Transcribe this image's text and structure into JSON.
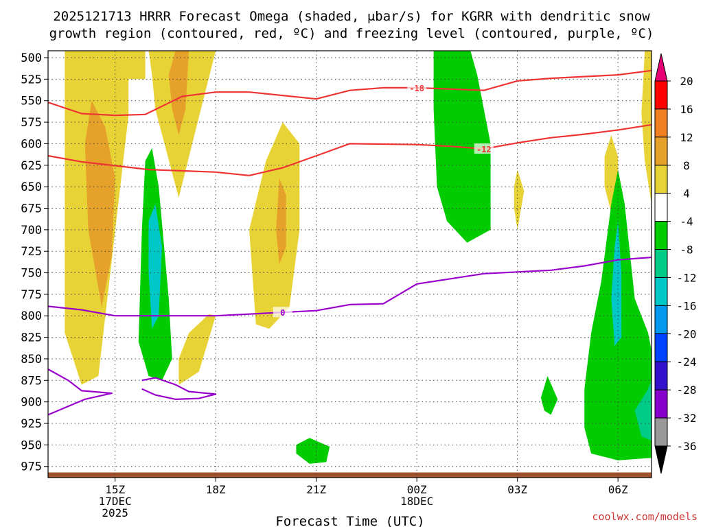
{
  "chart_data": {
    "type": "heatmap",
    "title_line1": "2025121713 HRRR Forecast Omega (shaded, μbar/s) for KGRR with dendritic snow",
    "title_line2": "growth region (contoured, red, ºC) and freezing level (contoured, purple, ºC)",
    "xlabel": "Forecast Time (UTC)",
    "credit": "coolwx.com/models",
    "xlim": [
      13,
      31
    ],
    "ylim": [
      492,
      988
    ],
    "x_ticks": [
      {
        "x": 15,
        "lines": [
          "15Z",
          "17DEC",
          "2025"
        ]
      },
      {
        "x": 18,
        "lines": [
          "18Z"
        ]
      },
      {
        "x": 21,
        "lines": [
          "21Z"
        ]
      },
      {
        "x": 24,
        "lines": [
          "00Z",
          "18DEC"
        ]
      },
      {
        "x": 27,
        "lines": [
          "03Z"
        ]
      },
      {
        "x": 30,
        "lines": [
          "06Z"
        ]
      }
    ],
    "y_ticks": [
      500,
      525,
      550,
      575,
      600,
      625,
      650,
      675,
      700,
      725,
      750,
      775,
      800,
      825,
      850,
      875,
      900,
      925,
      950,
      975
    ],
    "colorbar": {
      "levels": [
        "20",
        "16",
        "12",
        "8",
        "4",
        "-4",
        "-8",
        "-12",
        "-16",
        "-20",
        "-24",
        "-28",
        "-32",
        "-36"
      ],
      "colors": [
        "#ff0000",
        "#ee7f22",
        "#e5a12a",
        "#e8d337",
        "#ffffff",
        "#00cc00",
        "#00cc88",
        "#00c8c8",
        "#0099ee",
        "#0044ff",
        "#3311cc",
        "#8800cc",
        "#999999"
      ],
      "top_color": "#e60073",
      "bottom_color": "#000000"
    },
    "contours": [
      {
        "color": "#ee3333",
        "value": -18,
        "label": "-18",
        "points": [
          [
            13,
            552
          ],
          [
            14,
            565
          ],
          [
            15,
            567
          ],
          [
            15.9,
            566
          ],
          [
            17,
            545
          ],
          [
            18,
            540
          ],
          [
            19,
            540
          ],
          [
            21,
            548
          ],
          [
            22,
            538
          ],
          [
            23,
            535
          ],
          [
            24,
            535
          ],
          [
            26,
            538
          ],
          [
            27,
            527
          ],
          [
            28,
            524
          ],
          [
            30,
            520
          ],
          [
            31,
            515
          ]
        ]
      },
      {
        "color": "#ee3333",
        "value": -12,
        "label": "-12",
        "points": [
          [
            13,
            614
          ],
          [
            14,
            621
          ],
          [
            16,
            630
          ],
          [
            18,
            633
          ],
          [
            19,
            637
          ],
          [
            20,
            628
          ],
          [
            21,
            614
          ],
          [
            22,
            600
          ],
          [
            24,
            601
          ],
          [
            25,
            603
          ],
          [
            26,
            606
          ],
          [
            27,
            599
          ],
          [
            28,
            593
          ],
          [
            29,
            589
          ],
          [
            30,
            584
          ],
          [
            31,
            578
          ]
        ]
      },
      {
        "color": "#9900cc",
        "value": 0,
        "label": "0",
        "points": [
          [
            13,
            789
          ],
          [
            14,
            793
          ],
          [
            15,
            800
          ],
          [
            16,
            800
          ],
          [
            17,
            800
          ],
          [
            18,
            800
          ],
          [
            20,
            796
          ],
          [
            21,
            794
          ],
          [
            22,
            787
          ],
          [
            23,
            786
          ],
          [
            24,
            763
          ],
          [
            25,
            757
          ],
          [
            26,
            751
          ],
          [
            28,
            747
          ],
          [
            29,
            742
          ],
          [
            30,
            735
          ],
          [
            31,
            732
          ]
        ]
      },
      {
        "color": "#9900cc",
        "value": 0,
        "label": "",
        "points": [
          [
            13,
            862
          ],
          [
            13.6,
            875
          ],
          [
            14,
            887
          ],
          [
            14.9,
            890
          ],
          [
            14.1,
            897
          ],
          [
            13,
            915
          ]
        ]
      },
      {
        "color": "#9900cc",
        "value": 0,
        "label": "",
        "points": [
          [
            15.8,
            875
          ],
          [
            16.2,
            872
          ],
          [
            16.8,
            880
          ],
          [
            17.2,
            888
          ],
          [
            18,
            891
          ],
          [
            17.5,
            896
          ],
          [
            16.8,
            897
          ],
          [
            16.2,
            892
          ],
          [
            15.8,
            885
          ]
        ]
      }
    ],
    "regions": [
      {
        "level": 4,
        "color": "#e8d337",
        "points": [
          [
            13.5,
            492
          ],
          [
            15.4,
            492
          ],
          [
            15.4,
            567
          ],
          [
            14.5,
            870
          ],
          [
            14,
            880
          ],
          [
            13.5,
            820
          ]
        ]
      },
      {
        "level": 4,
        "color": "#e8d337",
        "points": [
          [
            15.2,
            492
          ],
          [
            15.35,
            525
          ],
          [
            15.9,
            525
          ],
          [
            15.9,
            492
          ]
        ]
      },
      {
        "level": 4,
        "color": "#e8d337",
        "points": [
          [
            16,
            492
          ],
          [
            18,
            492
          ],
          [
            17.3,
            600
          ],
          [
            16.9,
            663
          ],
          [
            16.2,
            560
          ],
          [
            16.1,
            520
          ]
        ]
      },
      {
        "level": 4,
        "color": "#e8d337",
        "points": [
          [
            16.9,
            850
          ],
          [
            17.2,
            820
          ],
          [
            17.8,
            798
          ],
          [
            18,
            800
          ],
          [
            17.5,
            865
          ],
          [
            16.9,
            880
          ]
        ]
      },
      {
        "level": 4,
        "color": "#e8d337",
        "points": [
          [
            19.2,
            810
          ],
          [
            19,
            700
          ],
          [
            19.5,
            620
          ],
          [
            20,
            575
          ],
          [
            20.5,
            600
          ],
          [
            20.5,
            700
          ],
          [
            20.2,
            790
          ],
          [
            19.6,
            815
          ]
        ]
      },
      {
        "level": 4,
        "color": "#e8d337",
        "points": [
          [
            30.7,
            565
          ],
          [
            30.8,
            492
          ],
          [
            31,
            492
          ],
          [
            31,
            670
          ],
          [
            30.8,
            620
          ]
        ]
      },
      {
        "level": 4,
        "color": "#e8d337",
        "points": [
          [
            26.9,
            650
          ],
          [
            27,
            630
          ],
          [
            27.2,
            655
          ],
          [
            27,
            700
          ],
          [
            26.9,
            675
          ]
        ]
      },
      {
        "level": 4,
        "color": "#e8d337",
        "points": [
          [
            29.6,
            615
          ],
          [
            29.8,
            590
          ],
          [
            30,
            615
          ],
          [
            30,
            660
          ],
          [
            29.8,
            680
          ],
          [
            29.6,
            650
          ]
        ]
      },
      {
        "level": 8,
        "color": "#e5a12a",
        "points": [
          [
            14.3,
            550
          ],
          [
            14.7,
            580
          ],
          [
            15,
            640
          ],
          [
            14.9,
            730
          ],
          [
            14.6,
            790
          ],
          [
            14.2,
            700
          ],
          [
            14.1,
            600
          ]
        ]
      },
      {
        "level": 8,
        "color": "#e5a12a",
        "points": [
          [
            16.8,
            492
          ],
          [
            17.2,
            492
          ],
          [
            17.1,
            560
          ],
          [
            16.9,
            590
          ],
          [
            16.7,
            560
          ],
          [
            16.6,
            520
          ]
        ]
      },
      {
        "level": 8,
        "color": "#e5a12a",
        "points": [
          [
            19.9,
            640
          ],
          [
            20.1,
            660
          ],
          [
            20.1,
            720
          ],
          [
            19.9,
            740
          ],
          [
            19.8,
            700
          ]
        ]
      },
      {
        "level": -4,
        "color": "#00cc00",
        "points": [
          [
            15.9,
            620
          ],
          [
            16.1,
            605
          ],
          [
            16.3,
            650
          ],
          [
            16.6,
            780
          ],
          [
            16.7,
            850
          ],
          [
            16.4,
            875
          ],
          [
            16,
            870
          ],
          [
            15.7,
            830
          ],
          [
            15.8,
            700
          ]
        ]
      },
      {
        "level": -4,
        "color": "#00cc00",
        "points": [
          [
            24.5,
            492
          ],
          [
            25.6,
            492
          ],
          [
            25.8,
            520
          ],
          [
            26.2,
            600
          ],
          [
            26.2,
            700
          ],
          [
            25.5,
            715
          ],
          [
            24.9,
            690
          ],
          [
            24.6,
            650
          ],
          [
            24.5,
            560
          ]
        ]
      },
      {
        "level": -4,
        "color": "#00cc00",
        "points": [
          [
            29.2,
            820
          ],
          [
            29.5,
            760
          ],
          [
            29.8,
            670
          ],
          [
            30,
            630
          ],
          [
            30.2,
            670
          ],
          [
            30.5,
            780
          ],
          [
            30.9,
            820
          ],
          [
            31,
            840
          ],
          [
            31,
            965
          ],
          [
            30,
            968
          ],
          [
            29.2,
            960
          ],
          [
            29,
            930
          ],
          [
            29,
            885
          ]
        ]
      },
      {
        "level": -4,
        "color": "#00cc00",
        "points": [
          [
            20.4,
            950
          ],
          [
            20.8,
            942
          ],
          [
            21.4,
            952
          ],
          [
            21.3,
            970
          ],
          [
            20.8,
            972
          ],
          [
            20.4,
            960
          ]
        ]
      },
      {
        "level": -4,
        "color": "#00cc00",
        "points": [
          [
            27.7,
            895
          ],
          [
            27.9,
            870
          ],
          [
            28.2,
            897
          ],
          [
            28,
            915
          ],
          [
            27.8,
            910
          ]
        ]
      },
      {
        "level": -8,
        "color": "#00cc88",
        "points": [
          [
            30.9,
            885
          ],
          [
            31,
            875
          ],
          [
            31,
            945
          ],
          [
            30.7,
            940
          ],
          [
            30.5,
            910
          ]
        ]
      },
      {
        "level": -12,
        "color": "#00c8c8",
        "points": [
          [
            16,
            690
          ],
          [
            16.2,
            670
          ],
          [
            16.4,
            720
          ],
          [
            16.3,
            800
          ],
          [
            16.1,
            815
          ],
          [
            16,
            750
          ]
        ]
      },
      {
        "level": -12,
        "color": "#00c8c8",
        "points": [
          [
            29.9,
            720
          ],
          [
            30,
            690
          ],
          [
            30.1,
            750
          ],
          [
            30.1,
            825
          ],
          [
            29.9,
            835
          ],
          [
            29.8,
            780
          ]
        ]
      }
    ],
    "terrain": {
      "color": "#a0522d",
      "pressure": 982
    },
    "grid": true
  }
}
